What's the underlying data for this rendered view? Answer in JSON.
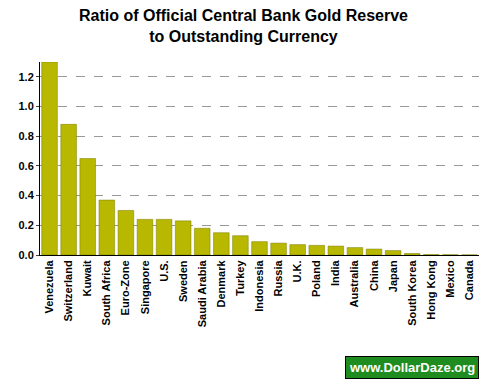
{
  "chart_data": {
    "type": "bar",
    "title": "Ratio of Official Central Bank Gold Reserve\nto Outstanding Currency",
    "categories": [
      "Venezuela",
      "Switzerland",
      "Kuwait",
      "South Africa",
      "Euro-Zone",
      "Singapore",
      "U.S.",
      "Sweden",
      "Saudi Arabia",
      "Denmark",
      "Turkey",
      "Indonesia",
      "Russia",
      "U.K.",
      "Poland",
      "India",
      "Australia",
      "China",
      "Japan",
      "South Korea",
      "Hong Kong",
      "Mexico",
      "Canada"
    ],
    "values": [
      1.3,
      0.88,
      0.65,
      0.37,
      0.3,
      0.24,
      0.24,
      0.23,
      0.18,
      0.15,
      0.13,
      0.09,
      0.08,
      0.07,
      0.065,
      0.06,
      0.05,
      0.04,
      0.03,
      0.01,
      0.003,
      0.002,
      0.001
    ],
    "color": "#b8b800",
    "ylim": [
      0,
      1.3
    ],
    "yticks": [
      {
        "value": 0,
        "label": "0.0"
      },
      0.2,
      0.4,
      0.6,
      0.8,
      {
        "value": 1,
        "label": "1.0"
      },
      1.2
    ],
    "grid": true,
    "annotations": [
      "www.DollarDaze.org"
    ]
  }
}
